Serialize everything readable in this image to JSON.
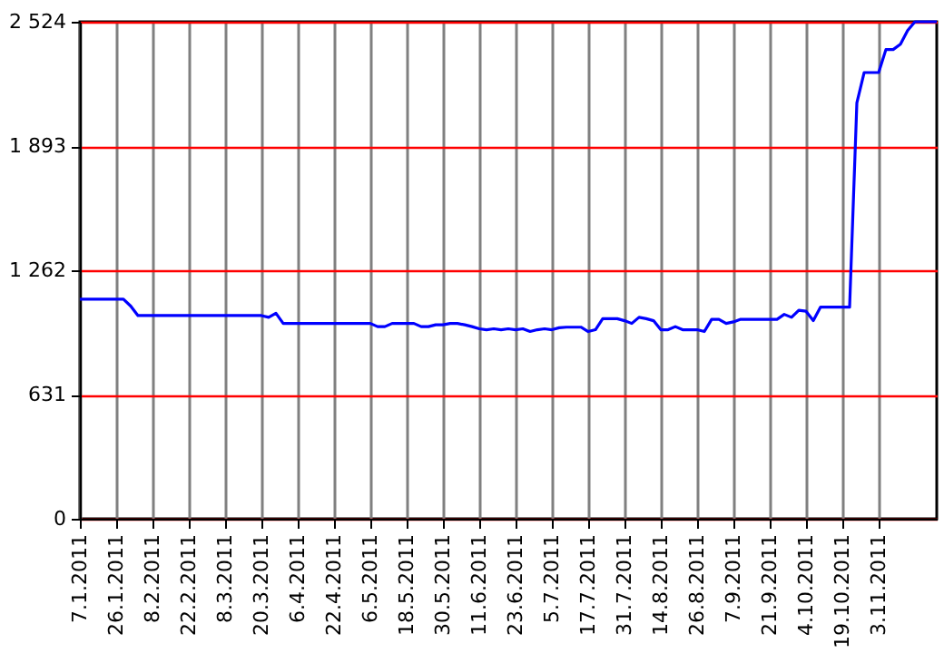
{
  "chart_data": {
    "type": "line",
    "categories": [
      "7.1.2011",
      null,
      null,
      null,
      null,
      "26.1.2011",
      null,
      null,
      null,
      null,
      "8.2.2011",
      null,
      null,
      null,
      null,
      "22.2.2011",
      null,
      null,
      null,
      null,
      "8.3.2011",
      null,
      null,
      null,
      null,
      "20.3.2011",
      null,
      null,
      null,
      null,
      "6.4.2011",
      null,
      null,
      null,
      null,
      "22.4.2011",
      null,
      null,
      null,
      null,
      "6.5.2011",
      null,
      null,
      null,
      null,
      "18.5.2011",
      null,
      null,
      null,
      null,
      "30.5.2011",
      null,
      null,
      null,
      null,
      "11.6.2011",
      null,
      null,
      null,
      null,
      "23.6.2011",
      null,
      null,
      null,
      null,
      "5.7.2011",
      null,
      null,
      null,
      null,
      "17.7.2011",
      null,
      null,
      null,
      null,
      "31.7.2011",
      null,
      null,
      null,
      null,
      "14.8.2011",
      null,
      null,
      null,
      null,
      "26.8.2011",
      null,
      null,
      null,
      null,
      "7.9.2011",
      null,
      null,
      null,
      null,
      "21.9.2011",
      null,
      null,
      null,
      null,
      "4.10.2011",
      null,
      null,
      null,
      null,
      "19.10.2011",
      null,
      null,
      null,
      null,
      "3.11.2011",
      null,
      null,
      null,
      null,
      null,
      null,
      null,
      null
    ],
    "series": [
      {
        "color": "#0000ff",
        "values": [
          1115,
          1115,
          1115,
          1115,
          1115,
          1115,
          1115,
          1080,
          1032,
          1032,
          1032,
          1032,
          1032,
          1032,
          1032,
          1032,
          1032,
          1032,
          1032,
          1032,
          1032,
          1032,
          1032,
          1032,
          1032,
          1032,
          1023,
          1044,
          992,
          992,
          992,
          992,
          992,
          992,
          992,
          992,
          992,
          992,
          992,
          992,
          992,
          976,
          976,
          992,
          992,
          992,
          992,
          976,
          976,
          985,
          985,
          992,
          992,
          985,
          976,
          965,
          960,
          965,
          960,
          965,
          960,
          965,
          951,
          960,
          965,
          960,
          970,
          973,
          973,
          973,
          951,
          960,
          1016,
          1016,
          1016,
          1006,
          992,
          1023,
          1016,
          1006,
          960,
          960,
          976,
          960,
          960,
          960,
          951,
          1013,
          1013,
          992,
          1000,
          1013,
          1013,
          1013,
          1013,
          1013,
          1013,
          1038,
          1023,
          1059,
          1054,
          1006,
          1075,
          1075,
          1075,
          1075,
          1075,
          2112,
          2266,
          2266,
          2266,
          2383,
          2383,
          2410,
          2480,
          2524,
          2524,
          2524,
          2524
        ]
      }
    ],
    "ylim": [
      0,
      2524
    ],
    "yticks": [
      0,
      631,
      {
        "value": 1262,
        "label": "1 262"
      },
      {
        "value": 1893,
        "label": "1 893"
      },
      {
        "value": 2524,
        "label": "2 524"
      }
    ],
    "grid": true
  }
}
